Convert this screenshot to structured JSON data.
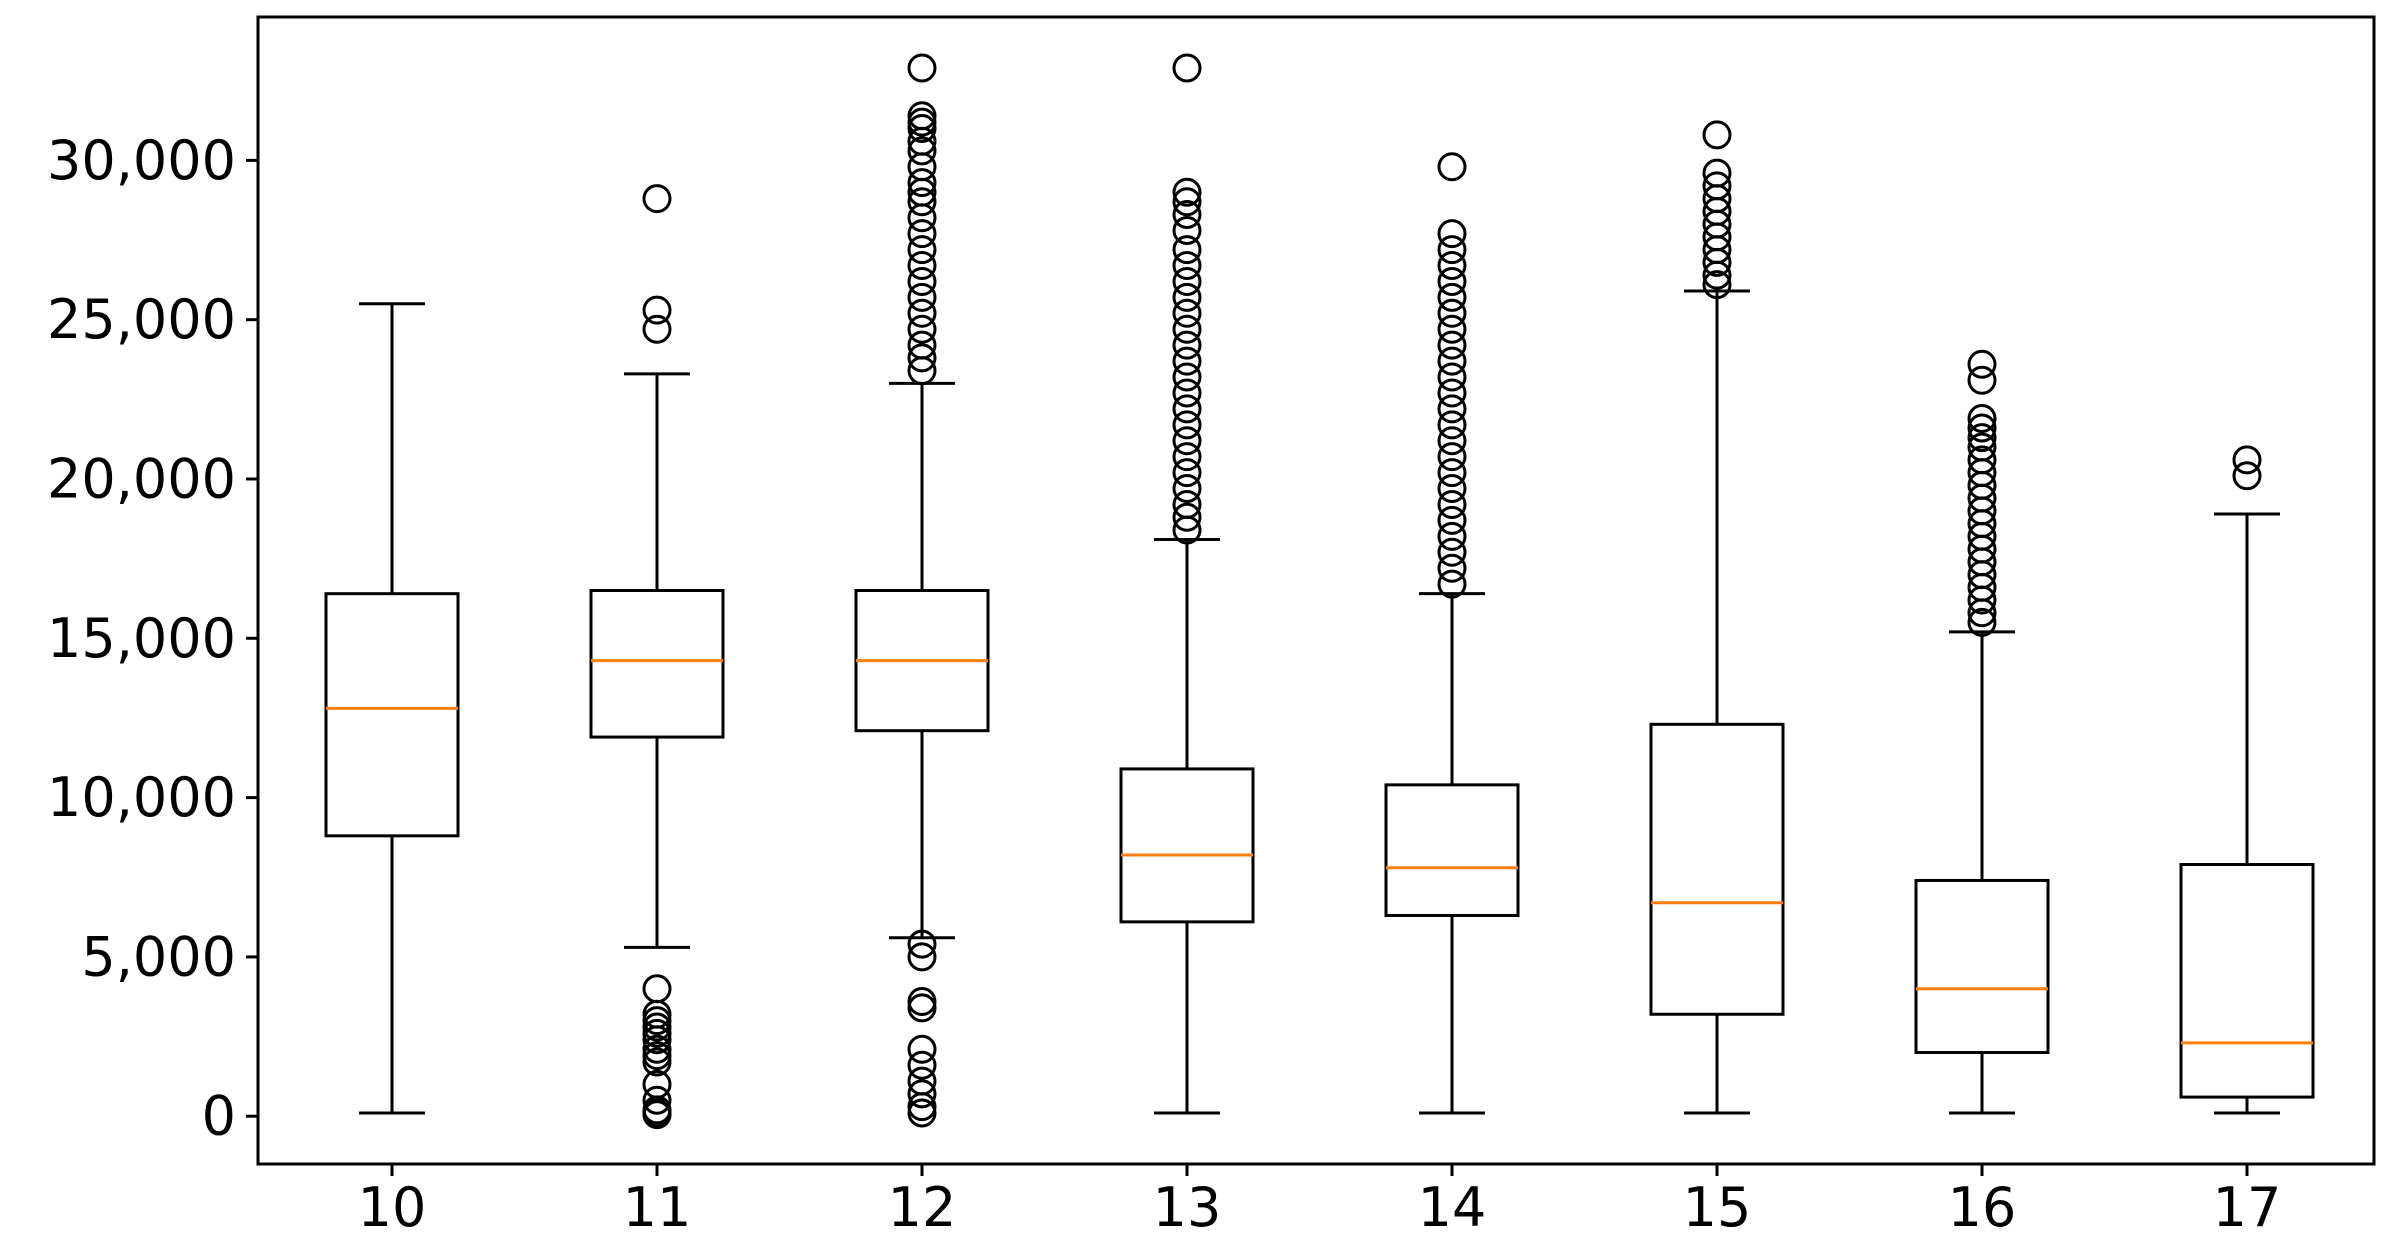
{
  "chart_data": {
    "type": "boxplot",
    "title": "",
    "xlabel": "",
    "ylabel": "",
    "categories": [
      "10",
      "11",
      "12",
      "13",
      "14",
      "15",
      "16",
      "17"
    ],
    "ylim": [
      -1500,
      34500
    ],
    "y_ticks": [
      {
        "value": 0,
        "label": "0"
      },
      {
        "value": 5000,
        "label": "5,000"
      },
      {
        "value": 10000,
        "label": "10,000"
      },
      {
        "value": 15000,
        "label": "15,000"
      },
      {
        "value": 20000,
        "label": "20,000"
      },
      {
        "value": 25000,
        "label": "25,000"
      },
      {
        "value": 30000,
        "label": "30,000"
      }
    ],
    "grid": false,
    "colors": {
      "box": "#000000",
      "median": "#ff7f0e",
      "flier": "#000000"
    },
    "boxes": [
      {
        "category": "10",
        "whisker_low": 100,
        "q1": 8800,
        "median": 12800,
        "q3": 16400,
        "whisker_high": 25500,
        "fliers": []
      },
      {
        "category": "11",
        "whisker_low": 5300,
        "q1": 11900,
        "median": 14300,
        "q3": 16500,
        "whisker_high": 23300,
        "fliers": [
          28800,
          25300,
          24700,
          4000,
          3200,
          3000,
          2800,
          2600,
          2400,
          2100,
          1900,
          1700,
          1000,
          500,
          200,
          100,
          50
        ]
      },
      {
        "category": "12",
        "whisker_low": 5600,
        "q1": 12100,
        "median": 14300,
        "q3": 16500,
        "whisker_high": 23000,
        "fliers": [
          32900,
          31400,
          31200,
          31000,
          30600,
          30300,
          29800,
          29300,
          29000,
          28700,
          28200,
          27700,
          27200,
          26700,
          26200,
          25700,
          25200,
          24700,
          24200,
          23800,
          23400,
          5400,
          5000,
          3600,
          3400,
          2100,
          1600,
          1100,
          700,
          300,
          100
        ]
      },
      {
        "category": "13",
        "whisker_low": 100,
        "q1": 6100,
        "median": 8200,
        "q3": 10900,
        "whisker_high": 18100,
        "fliers": [
          32900,
          29000,
          28700,
          28300,
          27800,
          27200,
          26700,
          26200,
          25700,
          25200,
          24700,
          24200,
          23700,
          23200,
          22700,
          22200,
          21700,
          21200,
          20700,
          20200,
          19700,
          19200,
          18800,
          18400
        ]
      },
      {
        "category": "14",
        "whisker_low": 100,
        "q1": 6300,
        "median": 7800,
        "q3": 10400,
        "whisker_high": 16400,
        "fliers": [
          29800,
          27700,
          27200,
          26700,
          26200,
          25700,
          25200,
          24700,
          24200,
          23700,
          23200,
          22700,
          22200,
          21700,
          21200,
          20700,
          20200,
          19700,
          19200,
          18700,
          18200,
          17700,
          17200,
          16700
        ]
      },
      {
        "category": "15",
        "whisker_low": 100,
        "q1": 3200,
        "median": 6700,
        "q3": 12300,
        "whisker_high": 25900,
        "fliers": [
          30800,
          29600,
          29200,
          28800,
          28400,
          28000,
          27600,
          27200,
          26800,
          26400,
          26100
        ]
      },
      {
        "category": "16",
        "whisker_low": 100,
        "q1": 2000,
        "median": 4000,
        "q3": 7400,
        "whisker_high": 15200,
        "fliers": [
          23600,
          23100,
          21900,
          21600,
          21300,
          21000,
          20600,
          20200,
          19800,
          19400,
          19000,
          18600,
          18200,
          17800,
          17400,
          17000,
          16600,
          16200,
          15800,
          15500
        ]
      },
      {
        "category": "17",
        "whisker_low": 100,
        "q1": 600,
        "median": 2300,
        "q3": 7900,
        "whisker_high": 18900,
        "fliers": [
          20600,
          20100
        ]
      }
    ]
  }
}
